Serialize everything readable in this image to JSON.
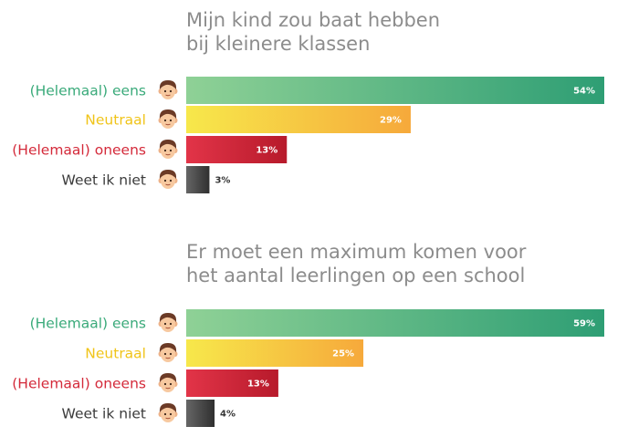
{
  "colors": {
    "eens": "#3aaa7a",
    "neutraal": "#f0c419",
    "oneens": "#d42a3a",
    "weet_niet": "#3b3b3b",
    "title": "#8c8c8c"
  },
  "icon": "face-icon",
  "chart_data": [
    {
      "type": "bar",
      "orientation": "horizontal",
      "title_lines": [
        "Mijn kind zou baat hebben",
        "bij kleinere klassen"
      ],
      "categories": [
        "(Helemaal) eens",
        "Neutraal",
        "(Helemaal) oneens",
        "Weet ik niet"
      ],
      "values": [
        54,
        29,
        13,
        3
      ],
      "value_labels": [
        "54%",
        "29%",
        "13%",
        "3%"
      ],
      "unit": "%",
      "xlim": [
        0,
        54
      ]
    },
    {
      "type": "bar",
      "orientation": "horizontal",
      "title_lines": [
        "Er moet een maximum komen voor",
        "het aantal leerlingen op een school"
      ],
      "categories": [
        "(Helemaal) eens",
        "Neutraal",
        "(Helemaal) oneens",
        "Weet ik niet"
      ],
      "values": [
        59,
        25,
        13,
        4
      ],
      "value_labels": [
        "59%",
        "25%",
        "13%",
        "4%"
      ],
      "unit": "%",
      "xlim": [
        0,
        59
      ]
    }
  ]
}
